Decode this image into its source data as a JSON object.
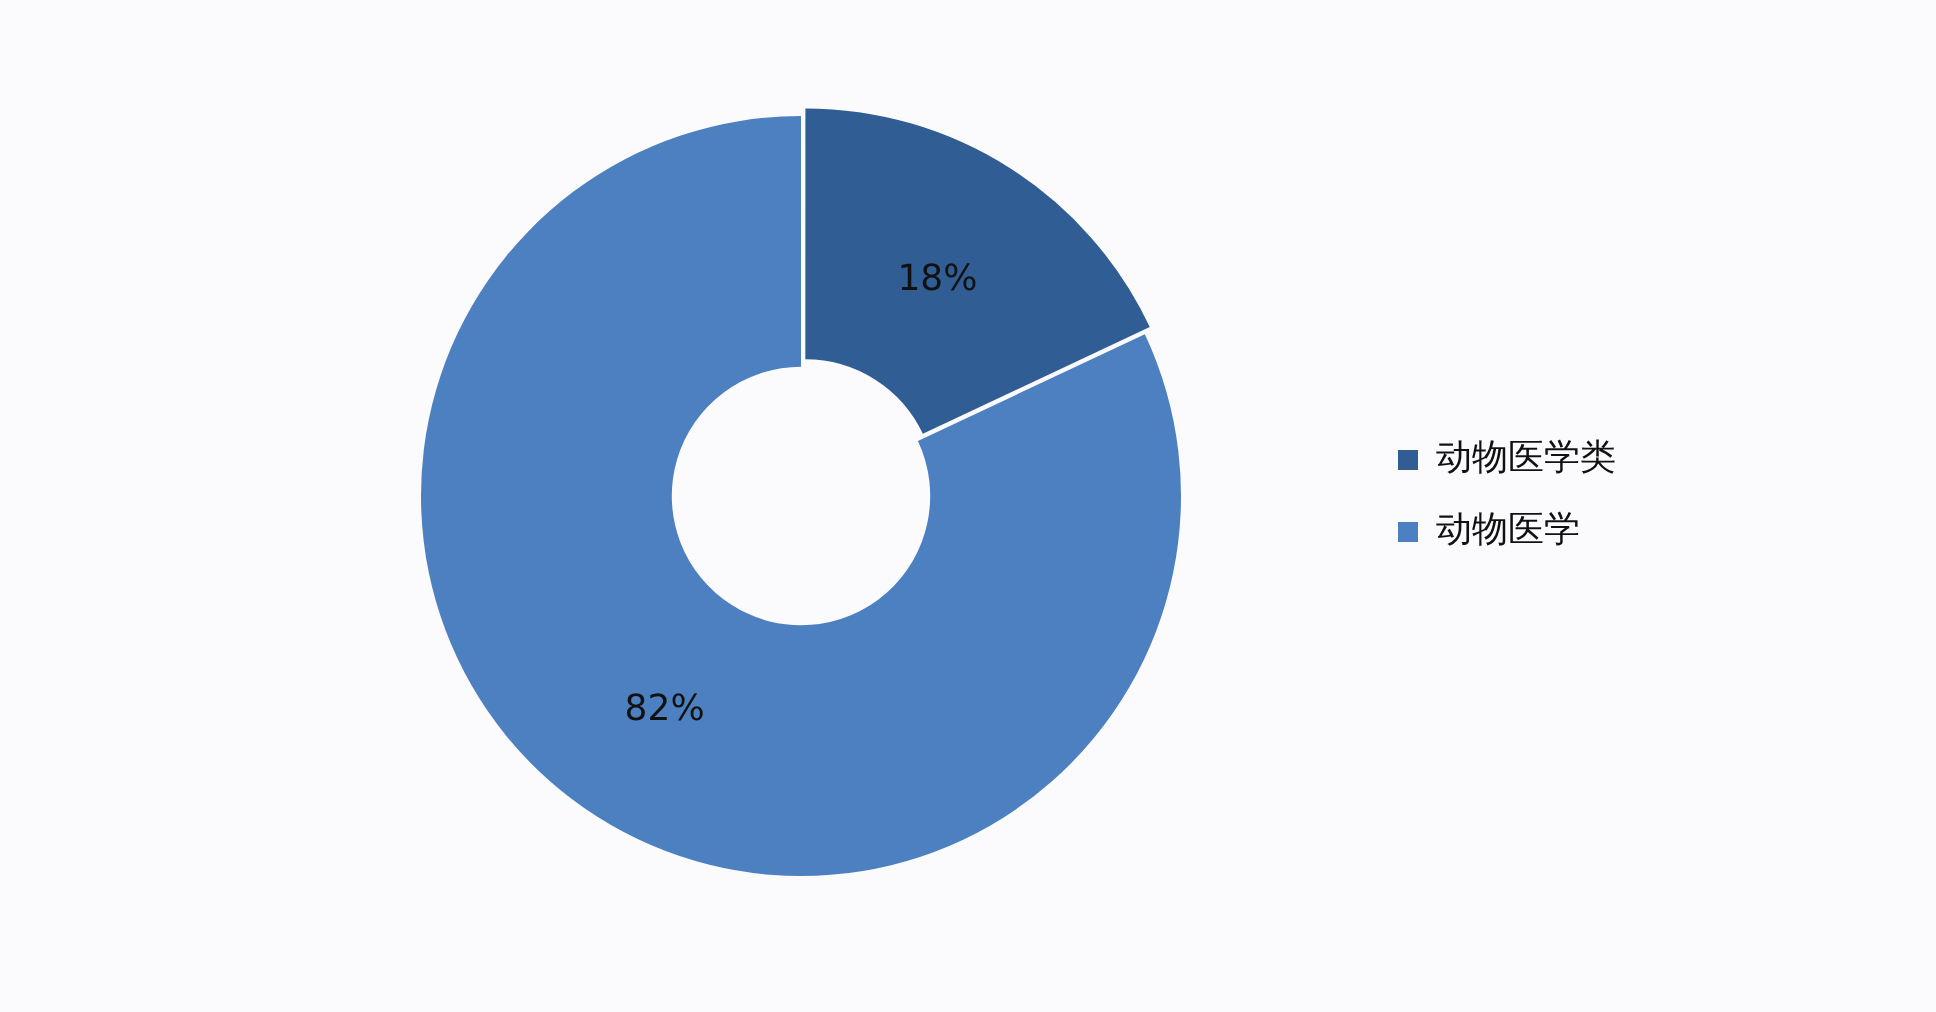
{
  "chart_data": {
    "type": "donut",
    "categories": [
      "动物医学类",
      "动物医学"
    ],
    "values": [
      18,
      82
    ],
    "colors": [
      "#305d94",
      "#4d80c0"
    ],
    "value_labels": [
      "18%",
      "82%"
    ],
    "legend": "right"
  }
}
